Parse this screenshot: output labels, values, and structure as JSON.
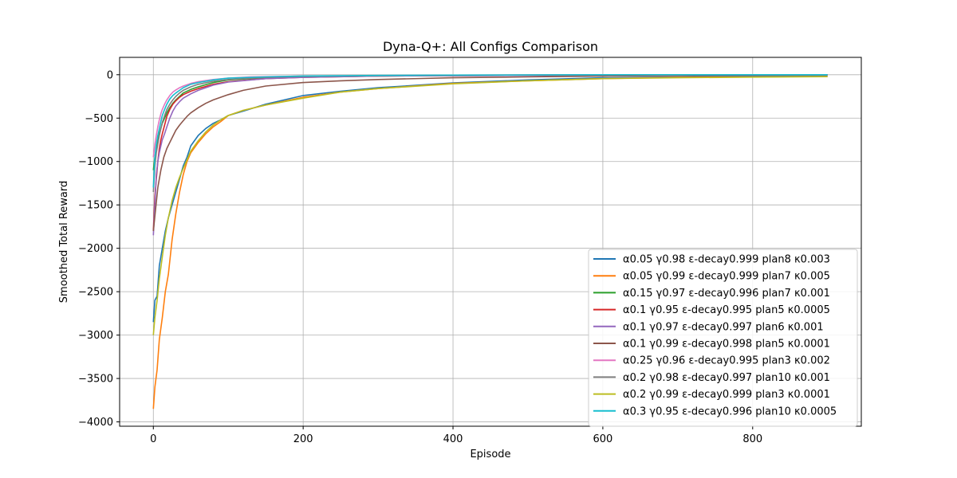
{
  "chart_data": {
    "type": "line",
    "title": "Dyna-Q+: All Configs Comparison",
    "xlabel": "Episode",
    "ylabel": "Smoothed Total Reward",
    "xlim": [
      -45,
      945
    ],
    "ylim": [
      -4050,
      200
    ],
    "xticks": [
      0,
      200,
      400,
      600,
      800
    ],
    "yticks": [
      0,
      -500,
      -1000,
      -1500,
      -2000,
      -2500,
      -3000,
      -3500,
      -4000
    ],
    "grid": true,
    "legend_position": "lower-right",
    "series": [
      {
        "name": "α0.05 γ0.98 ε-decay0.999 plan8 κ0.003",
        "color": "#1f77b4",
        "x": [
          0,
          2,
          5,
          8,
          12,
          16,
          20,
          25,
          30,
          35,
          40,
          45,
          50,
          60,
          70,
          80,
          90,
          100,
          120,
          150,
          200,
          250,
          300,
          400,
          500,
          600,
          700,
          800,
          900
        ],
        "y": [
          -2850,
          -2600,
          -2550,
          -2200,
          -2000,
          -1800,
          -1650,
          -1500,
          -1350,
          -1200,
          -1050,
          -950,
          -820,
          -700,
          -620,
          -560,
          -520,
          -470,
          -420,
          -340,
          -240,
          -190,
          -150,
          -95,
          -60,
          -35,
          -25,
          -15,
          -10
        ]
      },
      {
        "name": "α0.05 γ0.99 ε-decay0.999 plan7 κ0.005",
        "color": "#ff7f0e",
        "x": [
          0,
          2,
          5,
          8,
          12,
          16,
          20,
          25,
          30,
          35,
          40,
          45,
          50,
          60,
          70,
          80,
          90,
          100,
          120,
          150,
          200,
          250,
          300,
          400,
          500,
          600,
          700,
          800,
          900
        ],
        "y": [
          -3850,
          -3600,
          -3400,
          -3050,
          -2800,
          -2500,
          -2300,
          -1900,
          -1600,
          -1350,
          -1150,
          -1000,
          -900,
          -780,
          -680,
          -600,
          -540,
          -470,
          -410,
          -350,
          -260,
          -200,
          -160,
          -100,
          -70,
          -45,
          -30,
          -25,
          -20
        ]
      },
      {
        "name": "α0.15 γ0.97 ε-decay0.996 plan7 κ0.001",
        "color": "#2ca02c",
        "x": [
          0,
          2,
          4,
          6,
          8,
          10,
          12,
          15,
          18,
          22,
          26,
          30,
          35,
          40,
          50,
          60,
          80,
          100,
          150,
          200,
          300,
          400,
          600,
          900
        ],
        "y": [
          -1100,
          -950,
          -850,
          -750,
          -680,
          -620,
          -560,
          -500,
          -440,
          -380,
          -330,
          -290,
          -250,
          -210,
          -170,
          -140,
          -90,
          -60,
          -35,
          -25,
          -15,
          -10,
          -5,
          0
        ]
      },
      {
        "name": "α0.1 γ0.95 ε-decay0.995 plan5 κ0.0005",
        "color": "#d62728",
        "x": [
          0,
          2,
          4,
          6,
          8,
          10,
          12,
          15,
          18,
          22,
          26,
          30,
          35,
          40,
          50,
          60,
          80,
          100,
          150,
          200,
          300,
          400,
          600,
          900
        ],
        "y": [
          -1800,
          -1400,
          -1200,
          -1000,
          -850,
          -750,
          -680,
          -580,
          -480,
          -400,
          -340,
          -300,
          -260,
          -230,
          -190,
          -160,
          -110,
          -80,
          -45,
          -30,
          -15,
          -10,
          -5,
          0
        ]
      },
      {
        "name": "α0.1 γ0.97 ε-decay0.997 plan6 κ0.001",
        "color": "#9467bd",
        "x": [
          0,
          2,
          4,
          6,
          8,
          10,
          12,
          15,
          18,
          22,
          26,
          30,
          35,
          40,
          50,
          60,
          80,
          100,
          150,
          200,
          300,
          400,
          600,
          900
        ],
        "y": [
          -1850,
          -1500,
          -1150,
          -1000,
          -900,
          -820,
          -750,
          -680,
          -600,
          -500,
          -420,
          -360,
          -310,
          -270,
          -220,
          -180,
          -120,
          -85,
          -45,
          -30,
          -15,
          -10,
          -5,
          0
        ]
      },
      {
        "name": "α0.1 γ0.99 ε-decay0.998 plan5 κ0.0001",
        "color": "#8c564b",
        "x": [
          0,
          3,
          6,
          10,
          14,
          18,
          22,
          26,
          30,
          35,
          40,
          45,
          50,
          60,
          70,
          80,
          100,
          120,
          150,
          200,
          250,
          300,
          400,
          500,
          600,
          900
        ],
        "y": [
          -1800,
          -1550,
          -1300,
          -1100,
          -950,
          -850,
          -780,
          -710,
          -640,
          -580,
          -530,
          -480,
          -440,
          -380,
          -330,
          -290,
          -230,
          -180,
          -130,
          -90,
          -70,
          -55,
          -35,
          -25,
          -15,
          0
        ]
      },
      {
        "name": "α0.25 γ0.96 ε-decay0.995 plan3 κ0.002",
        "color": "#e377c2",
        "x": [
          0,
          2,
          4,
          6,
          8,
          10,
          12,
          15,
          18,
          22,
          26,
          30,
          35,
          40,
          50,
          60,
          80,
          100,
          130,
          160,
          200,
          300,
          400,
          600,
          900
        ],
        "y": [
          -950,
          -800,
          -700,
          -600,
          -520,
          -450,
          -400,
          -340,
          -290,
          -240,
          -200,
          -175,
          -150,
          -130,
          -100,
          -80,
          -55,
          -40,
          -25,
          -20,
          -15,
          -10,
          -5,
          0,
          0
        ]
      },
      {
        "name": "α0.2 γ0.98 ε-decay0.997 plan10 κ0.001",
        "color": "#7f7f7f",
        "x": [
          0,
          2,
          4,
          6,
          8,
          10,
          12,
          15,
          18,
          22,
          26,
          30,
          35,
          40,
          50,
          60,
          80,
          100,
          150,
          200,
          300,
          400,
          600,
          900
        ],
        "y": [
          -1350,
          -1050,
          -900,
          -800,
          -700,
          -620,
          -550,
          -470,
          -400,
          -340,
          -290,
          -250,
          -210,
          -180,
          -140,
          -110,
          -75,
          -55,
          -30,
          -20,
          -10,
          -5,
          0,
          0
        ]
      },
      {
        "name": "α0.2 γ0.99 ε-decay0.999 plan3 κ0.0001",
        "color": "#bcbd22",
        "x": [
          0,
          2,
          5,
          8,
          12,
          16,
          20,
          25,
          30,
          35,
          40,
          45,
          50,
          60,
          70,
          80,
          90,
          100,
          120,
          150,
          200,
          250,
          300,
          400,
          500,
          600,
          700,
          800,
          900
        ],
        "y": [
          -3000,
          -2800,
          -2600,
          -2350,
          -2100,
          -1850,
          -1650,
          -1450,
          -1300,
          -1180,
          -1080,
          -980,
          -880,
          -760,
          -660,
          -580,
          -520,
          -470,
          -410,
          -350,
          -270,
          -200,
          -160,
          -105,
          -70,
          -45,
          -35,
          -28,
          -22
        ]
      },
      {
        "name": "α0.3 γ0.95 ε-decay0.996 plan10 κ0.0005",
        "color": "#17becf",
        "x": [
          0,
          2,
          4,
          6,
          8,
          10,
          12,
          15,
          18,
          22,
          26,
          30,
          35,
          40,
          50,
          60,
          80,
          100,
          150,
          200,
          300,
          400,
          600,
          900
        ],
        "y": [
          -1300,
          -950,
          -800,
          -700,
          -620,
          -540,
          -470,
          -400,
          -340,
          -280,
          -240,
          -210,
          -180,
          -150,
          -110,
          -90,
          -60,
          -40,
          -25,
          -15,
          -8,
          -5,
          0,
          0
        ]
      }
    ]
  }
}
